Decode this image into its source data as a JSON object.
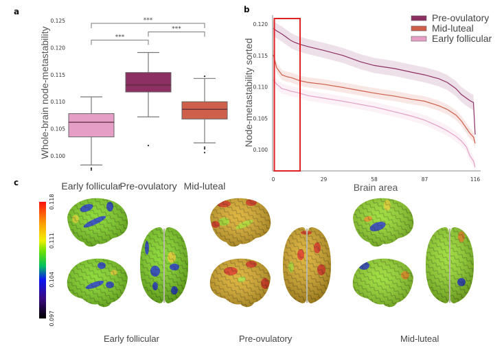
{
  "panels": {
    "a": "a",
    "b": "b",
    "c": "c"
  },
  "colors": {
    "early_follicular": "#e59ec5",
    "pre_ovulatory": "#8c2f62",
    "mid_luteal": "#cd5f4b",
    "highlight_box": "#e02020"
  },
  "chart_data": [
    {
      "id": "a",
      "type": "box",
      "title": "",
      "xlabel": "",
      "ylabel": "Whole-brain node-metastability",
      "ylim": [
        0.0965,
        0.1255
      ],
      "yticks": [
        "0.100",
        "0.105",
        "0.110",
        "0.115",
        "0.120",
        "0.125"
      ],
      "ytick_values": [
        0.1,
        0.105,
        0.11,
        0.115,
        0.12,
        0.125
      ],
      "categories": [
        "Early follicular",
        "Pre-ovulatory",
        "Mid-luteal"
      ],
      "boxes": [
        {
          "name": "Early follicular",
          "whislo": 0.0983,
          "q1": 0.1035,
          "med": 0.1062,
          "q3": 0.1078,
          "whishi": 0.1109,
          "fliers": [
            0.0977,
            0.0974
          ]
        },
        {
          "name": "Pre-ovulatory",
          "whislo": 0.1072,
          "q1": 0.1118,
          "med": 0.1131,
          "q3": 0.1154,
          "whishi": 0.1191,
          "fliers": [
            0.1019
          ]
        },
        {
          "name": "Mid-luteal",
          "whislo": 0.1024,
          "q1": 0.1068,
          "med": 0.1086,
          "q3": 0.11,
          "whishi": 0.1143,
          "fliers": [
            0.1147,
            0.1016,
            0.1013,
            0.1006
          ]
        }
      ],
      "significance": [
        {
          "from": 0,
          "to": 1,
          "label": "***",
          "y": 0.1214
        },
        {
          "from": 1,
          "to": 2,
          "label": "***",
          "y": 0.1229
        },
        {
          "from": 0,
          "to": 2,
          "label": "***",
          "y": 0.1245
        }
      ]
    },
    {
      "id": "b",
      "type": "line",
      "title": "",
      "xlabel": "Brain area",
      "ylabel": "Node-metastability sorted",
      "xlim": [
        0,
        116
      ],
      "ylim": [
        0.0965,
        0.1212
      ],
      "xticks": [
        "0",
        "29",
        "58",
        "87",
        "116"
      ],
      "xtick_values": [
        0,
        29,
        58,
        87,
        116
      ],
      "yticks": [
        "0.100",
        "0.105",
        "0.110",
        "0.115",
        "0.120"
      ],
      "ytick_values": [
        0.1,
        0.105,
        0.11,
        0.115,
        0.12
      ],
      "legend": {
        "position": "top-right",
        "entries": [
          "Pre-ovulatory",
          "Mid-luteal",
          "Early follicular"
        ]
      },
      "highlight_region": {
        "x_from": 1,
        "x_to": 15
      },
      "x": [
        0,
        2,
        5,
        8,
        10,
        12,
        15,
        20,
        29,
        40,
        50,
        58,
        70,
        80,
        87,
        95,
        100,
        105,
        108,
        111,
        113,
        115,
        116
      ],
      "series": [
        {
          "name": "Pre-ovulatory",
          "band": 0.0012,
          "values": [
            0.1193,
            0.1189,
            0.1184,
            0.1178,
            0.1174,
            0.1171,
            0.1168,
            0.1164,
            0.1158,
            0.115,
            0.114,
            0.1134,
            0.1129,
            0.1123,
            0.1119,
            0.1113,
            0.1107,
            0.1097,
            0.1088,
            0.1082,
            0.1078,
            0.1075,
            0.1024
          ]
        },
        {
          "name": "Mid-luteal",
          "band": 0.0008,
          "values": [
            0.1151,
            0.113,
            0.1119,
            0.1116,
            0.1115,
            0.1113,
            0.111,
            0.1107,
            0.1104,
            0.1099,
            0.1094,
            0.109,
            0.1085,
            0.108,
            0.1077,
            0.107,
            0.1064,
            0.1055,
            0.1046,
            0.1034,
            0.1026,
            0.102,
            0.101
          ]
        },
        {
          "name": "Early follicular",
          "band": 0.0008,
          "values": [
            0.1111,
            0.1104,
            0.1097,
            0.1095,
            0.1093,
            0.1092,
            0.109,
            0.1086,
            0.1082,
            0.1077,
            0.1072,
            0.1068,
            0.106,
            0.1053,
            0.1047,
            0.1037,
            0.103,
            0.1021,
            0.1014,
            0.1004,
            0.099,
            0.0982,
            0.0972
          ]
        }
      ]
    },
    {
      "id": "c",
      "type": "heatmap",
      "title": "",
      "colorbar": {
        "ticks": [
          "0.118",
          "0.111",
          "0.104",
          "0.097"
        ],
        "tick_values": [
          0.118,
          0.111,
          0.104,
          0.097
        ],
        "range": [
          0.097,
          0.118
        ],
        "colormap": "black-blue-green-yellow-red"
      },
      "conditions": [
        "Early follicular",
        "Pre-ovulatory",
        "Mid-luteal"
      ],
      "views": [
        "lateral",
        "medial",
        "top"
      ]
    }
  ],
  "brains": [
    {
      "label": "Early follicular",
      "palette": "cool",
      "base": "#7bd318",
      "blobs": "#1530c8"
    },
    {
      "label": "Pre-ovulatory",
      "palette": "hot",
      "base": "#d8a81e",
      "blobs": "#e02a10"
    },
    {
      "label": "Mid-luteal",
      "palette": "mid",
      "base": "#90d820",
      "blobs": "#1a30c0"
    }
  ]
}
